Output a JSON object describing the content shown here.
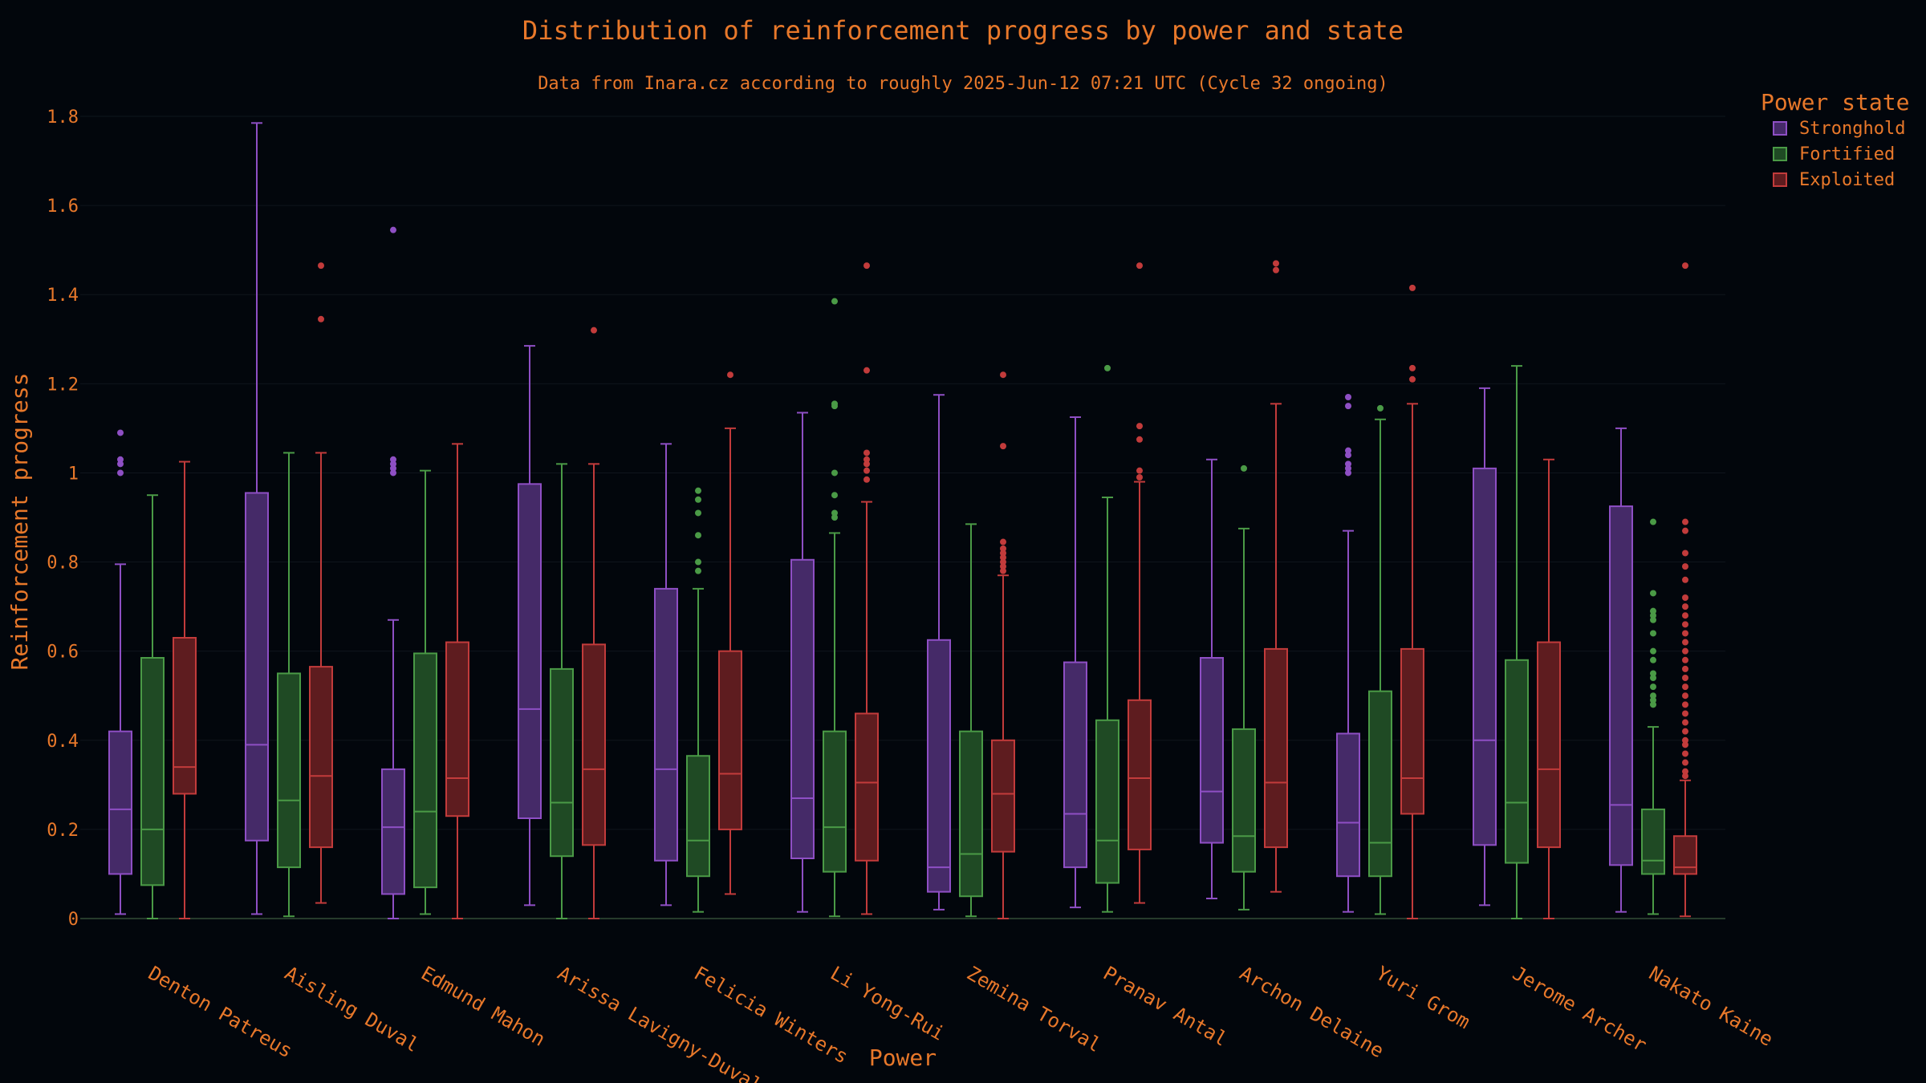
{
  "chart_data": {
    "type": "box",
    "title": "Distribution of reinforcement progress by power and state",
    "subtitle": "Data from Inara.cz according to roughly 2025-Jun-12 07:21 UTC (Cycle 32 ongoing)",
    "xlabel": "Power",
    "ylabel": "Reinforcement progress",
    "ylim": [
      0,
      1.8
    ],
    "yticks": [
      0,
      0.2,
      0.4,
      0.6,
      0.8,
      1,
      1.2,
      1.4,
      1.6,
      1.8
    ],
    "ytick_labels": [
      "0",
      "0.2",
      "0.4",
      "0.6",
      "0.8",
      "1",
      "1.2",
      "1.4",
      "1.6",
      "1.8"
    ],
    "grid": true,
    "legend": {
      "title": "Power state",
      "position": "top-right"
    },
    "categories": [
      "Denton Patreus",
      "Aisling Duval",
      "Edmund Mahon",
      "Arissa Lavigny-Duval",
      "Felicia Winters",
      "Li Yong-Rui",
      "Zemina Torval",
      "Pranav Antal",
      "Archon Delaine",
      "Yuri Grom",
      "Jerome Archer",
      "Nakato Kaine"
    ],
    "series": [
      {
        "name": "Stronghold",
        "color": "#8e4fc4",
        "fill": "#452a68",
        "boxes": [
          {
            "whisker_low": 0.01,
            "q1": 0.1,
            "median": 0.245,
            "q3": 0.42,
            "whisker_high": 0.795,
            "outliers": [
              1.0,
              1.02,
              1.03,
              1.09
            ]
          },
          {
            "whisker_low": 0.01,
            "q1": 0.175,
            "median": 0.39,
            "q3": 0.955,
            "whisker_high": 1.785,
            "outliers": []
          },
          {
            "whisker_low": 0.0,
            "q1": 0.055,
            "median": 0.205,
            "q3": 0.335,
            "whisker_high": 0.67,
            "outliers": [
              1.0,
              1.01,
              1.02,
              1.03,
              1.545
            ]
          },
          {
            "whisker_low": 0.03,
            "q1": 0.225,
            "median": 0.47,
            "q3": 0.975,
            "whisker_high": 1.285,
            "outliers": []
          },
          {
            "whisker_low": 0.03,
            "q1": 0.13,
            "median": 0.335,
            "q3": 0.74,
            "whisker_high": 1.065,
            "outliers": []
          },
          {
            "whisker_low": 0.015,
            "q1": 0.135,
            "median": 0.27,
            "q3": 0.805,
            "whisker_high": 1.135,
            "outliers": []
          },
          {
            "whisker_low": 0.02,
            "q1": 0.06,
            "median": 0.115,
            "q3": 0.625,
            "whisker_high": 1.175,
            "outliers": []
          },
          {
            "whisker_low": 0.025,
            "q1": 0.115,
            "median": 0.235,
            "q3": 0.575,
            "whisker_high": 1.125,
            "outliers": []
          },
          {
            "whisker_low": 0.045,
            "q1": 0.17,
            "median": 0.285,
            "q3": 0.585,
            "whisker_high": 1.03,
            "outliers": []
          },
          {
            "whisker_low": 0.015,
            "q1": 0.095,
            "median": 0.215,
            "q3": 0.415,
            "whisker_high": 0.87,
            "outliers": [
              1.0,
              1.01,
              1.02,
              1.04,
              1.05,
              1.15,
              1.17
            ]
          },
          {
            "whisker_low": 0.03,
            "q1": 0.165,
            "median": 0.4,
            "q3": 1.01,
            "whisker_high": 1.19,
            "outliers": []
          },
          {
            "whisker_low": 0.015,
            "q1": 0.12,
            "median": 0.255,
            "q3": 0.925,
            "whisker_high": 1.1,
            "outliers": []
          }
        ]
      },
      {
        "name": "Fortified",
        "color": "#4a9a46",
        "fill": "#1f4a24",
        "boxes": [
          {
            "whisker_low": 0.0,
            "q1": 0.075,
            "median": 0.2,
            "q3": 0.585,
            "whisker_high": 0.95,
            "outliers": []
          },
          {
            "whisker_low": 0.005,
            "q1": 0.115,
            "median": 0.265,
            "q3": 0.55,
            "whisker_high": 1.045,
            "outliers": []
          },
          {
            "whisker_low": 0.01,
            "q1": 0.07,
            "median": 0.24,
            "q3": 0.595,
            "whisker_high": 1.005,
            "outliers": []
          },
          {
            "whisker_low": 0.0,
            "q1": 0.14,
            "median": 0.26,
            "q3": 0.56,
            "whisker_high": 1.02,
            "outliers": []
          },
          {
            "whisker_low": 0.015,
            "q1": 0.095,
            "median": 0.175,
            "q3": 0.365,
            "whisker_high": 0.74,
            "outliers": [
              0.78,
              0.8,
              0.86,
              0.91,
              0.94,
              0.96
            ]
          },
          {
            "whisker_low": 0.005,
            "q1": 0.105,
            "median": 0.205,
            "q3": 0.42,
            "whisker_high": 0.865,
            "outliers": [
              0.9,
              0.91,
              0.95,
              1.0,
              1.15,
              1.155,
              1.385
            ]
          },
          {
            "whisker_low": 0.005,
            "q1": 0.05,
            "median": 0.145,
            "q3": 0.42,
            "whisker_high": 0.885,
            "outliers": []
          },
          {
            "whisker_low": 0.015,
            "q1": 0.08,
            "median": 0.175,
            "q3": 0.445,
            "whisker_high": 0.945,
            "outliers": [
              1.235
            ]
          },
          {
            "whisker_low": 0.02,
            "q1": 0.105,
            "median": 0.185,
            "q3": 0.425,
            "whisker_high": 0.875,
            "outliers": [
              1.01
            ]
          },
          {
            "whisker_low": 0.01,
            "q1": 0.095,
            "median": 0.17,
            "q3": 0.51,
            "whisker_high": 1.12,
            "outliers": [
              1.145
            ]
          },
          {
            "whisker_low": 0.0,
            "q1": 0.125,
            "median": 0.26,
            "q3": 0.58,
            "whisker_high": 1.24,
            "outliers": []
          },
          {
            "whisker_low": 0.01,
            "q1": 0.1,
            "median": 0.13,
            "q3": 0.245,
            "whisker_high": 0.43,
            "outliers": [
              0.48,
              0.49,
              0.5,
              0.52,
              0.54,
              0.55,
              0.58,
              0.6,
              0.64,
              0.67,
              0.68,
              0.69,
              0.73,
              0.89
            ]
          }
        ]
      },
      {
        "name": "Exploited",
        "color": "#c23b3b",
        "fill": "#5e1c1f",
        "boxes": [
          {
            "whisker_low": 0.0,
            "q1": 0.28,
            "median": 0.34,
            "q3": 0.63,
            "whisker_high": 1.025,
            "outliers": []
          },
          {
            "whisker_low": 0.035,
            "q1": 0.16,
            "median": 0.32,
            "q3": 0.565,
            "whisker_high": 1.045,
            "outliers": [
              1.345,
              1.465
            ]
          },
          {
            "whisker_low": 0.0,
            "q1": 0.23,
            "median": 0.315,
            "q3": 0.62,
            "whisker_high": 1.065,
            "outliers": []
          },
          {
            "whisker_low": 0.0,
            "q1": 0.165,
            "median": 0.335,
            "q3": 0.615,
            "whisker_high": 1.02,
            "outliers": [
              1.32
            ]
          },
          {
            "whisker_low": 0.055,
            "q1": 0.2,
            "median": 0.325,
            "q3": 0.6,
            "whisker_high": 1.1,
            "outliers": [
              1.22
            ]
          },
          {
            "whisker_low": 0.01,
            "q1": 0.13,
            "median": 0.305,
            "q3": 0.46,
            "whisker_high": 0.935,
            "outliers": [
              0.985,
              1.005,
              1.02,
              1.03,
              1.045,
              1.23,
              1.465
            ]
          },
          {
            "whisker_low": 0.0,
            "q1": 0.15,
            "median": 0.28,
            "q3": 0.4,
            "whisker_high": 0.77,
            "outliers": [
              0.78,
              0.79,
              0.8,
              0.81,
              0.82,
              0.83,
              0.845,
              1.06,
              1.22
            ]
          },
          {
            "whisker_low": 0.035,
            "q1": 0.155,
            "median": 0.315,
            "q3": 0.49,
            "whisker_high": 0.98,
            "outliers": [
              0.99,
              1.005,
              1.075,
              1.105,
              1.465
            ]
          },
          {
            "whisker_low": 0.06,
            "q1": 0.16,
            "median": 0.305,
            "q3": 0.605,
            "whisker_high": 1.155,
            "outliers": [
              1.455,
              1.47
            ]
          },
          {
            "whisker_low": 0.0,
            "q1": 0.235,
            "median": 0.315,
            "q3": 0.605,
            "whisker_high": 1.155,
            "outliers": [
              1.21,
              1.235,
              1.415
            ]
          },
          {
            "whisker_low": 0.0,
            "q1": 0.16,
            "median": 0.335,
            "q3": 0.62,
            "whisker_high": 1.03,
            "outliers": []
          },
          {
            "whisker_low": 0.005,
            "q1": 0.1,
            "median": 0.115,
            "q3": 0.185,
            "whisker_high": 0.31,
            "outliers": [
              0.32,
              0.33,
              0.35,
              0.37,
              0.39,
              0.4,
              0.42,
              0.44,
              0.46,
              0.48,
              0.5,
              0.52,
              0.54,
              0.56,
              0.58,
              0.6,
              0.62,
              0.64,
              0.66,
              0.68,
              0.7,
              0.72,
              0.76,
              0.79,
              0.82,
              0.87,
              0.89,
              1.465
            ]
          }
        ]
      }
    ]
  }
}
